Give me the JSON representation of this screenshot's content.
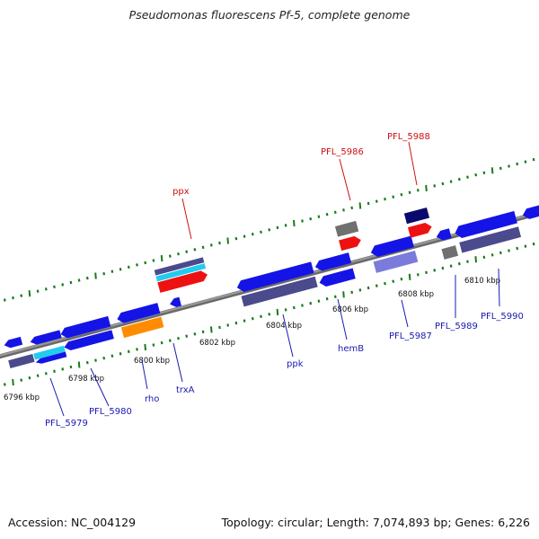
{
  "title": "Pseudomonas fluorescens Pf-5, complete genome",
  "footer": {
    "accession": "Accession: NC_004129",
    "summary": "Topology: circular; Length: 7,074,893 bp; Genes: 6,226"
  },
  "colors": {
    "backbone": "#8c8c8c",
    "tick": "#1a7a1a",
    "label_forward": "#cc1111",
    "label_reverse": "#1a1ab0",
    "blue_gene": "#1414e6",
    "cog_purple": "#4a4a8c",
    "cyan": "#22ccee",
    "red": "#ee1111",
    "orange": "#ff8c00",
    "grey": "#707070",
    "navy": "#0a0a6e",
    "lavender": "#7b7bdc"
  },
  "map": {
    "ruler_labels": [
      "6796 kbp",
      "6798 kbp",
      "6800 kbp",
      "6802 kbp",
      "6804 kbp",
      "6806 kbp",
      "6808 kbp",
      "6810 kbp"
    ],
    "gene_labels_forward": [
      "ppx",
      "PFL_5986",
      "PFL_5988"
    ],
    "gene_labels_reverse": [
      "PFL_5979",
      "PFL_5980",
      "rho",
      "trxA",
      "ppk",
      "hemB",
      "PFL_5987",
      "PFL_5989",
      "PFL_5990"
    ]
  }
}
